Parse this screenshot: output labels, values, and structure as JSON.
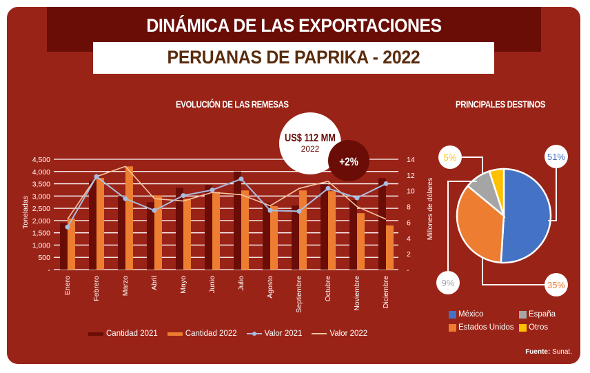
{
  "header": {
    "title": "DINÁMICA DE LAS EXPORTACIONES",
    "subtitle": "PERUANAS DE PAPRIKA - 2022"
  },
  "colors": {
    "background": "#9a2317",
    "dark": "#6a0d07",
    "cantidad_2021": "#6a0d07",
    "cantidad_2022": "#ed7d31",
    "valor_2021": "#a9bde0",
    "valor_2022": "#f8c6a0",
    "mexico": "#4472c4",
    "estados_unidos": "#ed7d31",
    "espana": "#a5a5a5",
    "otros": "#ffc000"
  },
  "callout": {
    "amount": "US$ 112 MM",
    "year": "2022",
    "growth": "+2%"
  },
  "source": {
    "label": "Fuente:",
    "value": "Sunat."
  },
  "chart_data": [
    {
      "type": "bar",
      "title": "EVOLUCIÓN DE LAS REMESAS",
      "xlabel": "",
      "ylabel": "Toneladas",
      "y2label": "Millones de dólares",
      "categories": [
        "Enero",
        "Febrero",
        "Marzo",
        "Abril",
        "Mayo",
        "Junio",
        "Julio",
        "Agosto",
        "Septiembre",
        "Octubre",
        "Noviembre",
        "Diciembre"
      ],
      "ylim": [
        0,
        4500
      ],
      "y2lim": [
        0,
        14
      ],
      "yticks": [
        "-",
        "500",
        "1,000",
        "1,500",
        "2,000",
        "2,500",
        "3,000",
        "3,500",
        "4,000",
        "4,500"
      ],
      "y2ticks": [
        "-",
        "2",
        "4",
        "6",
        "8",
        "10",
        "12",
        "14"
      ],
      "grid": true,
      "legend_position": "bottom",
      "series": [
        {
          "name": "Cantidad 2021",
          "kind": "bar",
          "axis": "left",
          "values": [
            1900,
            3620,
            3000,
            2750,
            3340,
            3450,
            4000,
            2720,
            2610,
            3480,
            2840,
            3730
          ]
        },
        {
          "name": "Cantidad 2022",
          "kind": "bar",
          "axis": "left",
          "values": [
            2080,
            3740,
            4210,
            3030,
            2890,
            3170,
            3230,
            2590,
            3230,
            3200,
            2300,
            1800
          ]
        },
        {
          "name": "Valor 2021",
          "kind": "line-marker",
          "axis": "right",
          "values": [
            5.4,
            11.8,
            9.0,
            7.5,
            9.4,
            10.1,
            11.5,
            7.5,
            7.4,
            10.3,
            9.1,
            10.9
          ]
        },
        {
          "name": "Valor 2022",
          "kind": "line",
          "axis": "right",
          "values": [
            6.4,
            11.8,
            13.1,
            9.0,
            8.7,
            9.8,
            9.5,
            8.1,
            10.3,
            11.2,
            8.0,
            6.4
          ]
        }
      ]
    },
    {
      "type": "pie",
      "title": "PRINCIPALES DESTINOS",
      "legend_position": "bottom",
      "slices": [
        {
          "name": "México",
          "value": 51,
          "label": "51%"
        },
        {
          "name": "Estados Unidos",
          "value": 35,
          "label": "35%"
        },
        {
          "name": "España",
          "value": 9,
          "label": "9%"
        },
        {
          "name": "Otros",
          "value": 5,
          "label": "5%"
        }
      ]
    }
  ]
}
